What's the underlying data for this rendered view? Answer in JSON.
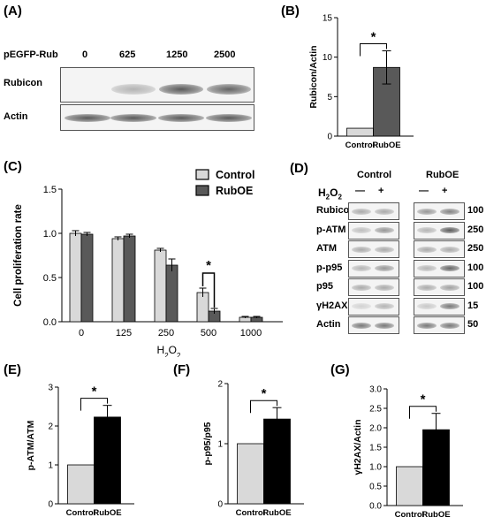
{
  "panel_labels": {
    "A": "(A)",
    "B": "(B)",
    "C": "(C)",
    "D": "(D)",
    "E": "(E)",
    "F": "(F)",
    "G": "(G)"
  },
  "panel_a": {
    "row_label_top": "pEGFP-Rub",
    "doses": [
      "0",
      "625",
      "1250",
      "2500"
    ],
    "blot_labels": [
      "Rubicon",
      "Actin"
    ],
    "rubicon_intensity": [
      0.0,
      0.3,
      0.75,
      0.7
    ],
    "actin_intensity": [
      0.75,
      0.75,
      0.75,
      0.75
    ]
  },
  "panel_d": {
    "group_labels": [
      "Control",
      "RubOE"
    ],
    "treatment_label": "H2O2",
    "treatment_marks": [
      "—",
      "+",
      "—",
      "+"
    ],
    "rows": [
      {
        "label": "Rubicon",
        "kda": "100"
      },
      {
        "label": "p-ATM",
        "kda": "250"
      },
      {
        "label": "ATM",
        "kda": "250"
      },
      {
        "label": "p-p95",
        "kda": "100"
      },
      {
        "label": "p95",
        "kda": "100"
      },
      {
        "label": "γH2AX",
        "kda": "15"
      },
      {
        "label": "Actin",
        "kda": "50"
      }
    ]
  },
  "chart_data": [
    {
      "id": "B",
      "type": "bar",
      "categories": [
        "Control",
        "RubOE"
      ],
      "values": [
        1.0,
        8.7
      ],
      "errors": [
        0,
        2.1
      ],
      "colors": [
        "#d9d9d9",
        "#595959"
      ],
      "ylabel": "Rubicon/Actin",
      "ylim": [
        0,
        15
      ],
      "yticks": [
        0,
        5,
        10,
        15
      ],
      "significance": "*"
    },
    {
      "id": "C",
      "type": "bar",
      "categories": [
        "0",
        "125",
        "250",
        "500",
        "1000"
      ],
      "xlabel": "H2O2",
      "ylabel": "Cell proliferation rate",
      "ylim": [
        0,
        1.5
      ],
      "yticks": [
        0.0,
        0.5,
        1.0,
        1.5
      ],
      "series": [
        {
          "name": "Control",
          "color": "#d9d9d9",
          "values": [
            1.0,
            0.94,
            0.81,
            0.33,
            0.05
          ],
          "errors": [
            0.03,
            0.02,
            0.02,
            0.05,
            0.01
          ]
        },
        {
          "name": "RubOE",
          "color": "#595959",
          "values": [
            0.99,
            0.97,
            0.64,
            0.12,
            0.05
          ],
          "errors": [
            0.02,
            0.02,
            0.07,
            0.03,
            0.01
          ]
        }
      ],
      "legend": "top-right",
      "significance": {
        "category": "500",
        "label": "*"
      }
    },
    {
      "id": "E",
      "type": "bar",
      "categories": [
        "Control",
        "RubOE"
      ],
      "values": [
        1.0,
        2.23
      ],
      "errors": [
        0,
        0.3
      ],
      "colors": [
        "#d9d9d9",
        "#000000"
      ],
      "ylabel": "p-ATM/ATM",
      "ylim": [
        0,
        3
      ],
      "yticks": [
        0,
        1,
        2,
        3
      ],
      "significance": "*"
    },
    {
      "id": "F",
      "type": "bar",
      "categories": [
        "Control",
        "RubOE"
      ],
      "values": [
        1.0,
        1.41
      ],
      "errors": [
        0,
        0.19
      ],
      "colors": [
        "#d9d9d9",
        "#000000"
      ],
      "ylabel": "p-p95/p95",
      "ylim": [
        0,
        2
      ],
      "yticks": [
        0,
        1,
        2
      ],
      "significance": "*"
    },
    {
      "id": "G",
      "type": "bar",
      "categories": [
        "Control",
        "RubOE"
      ],
      "values": [
        1.0,
        1.95
      ],
      "errors": [
        0,
        0.42
      ],
      "colors": [
        "#d9d9d9",
        "#000000"
      ],
      "ylabel": "γH2AX/Actin",
      "ylim": [
        0,
        3.0
      ],
      "yticks": [
        0.0,
        0.5,
        1.0,
        1.5,
        2.0,
        2.5,
        3.0
      ],
      "significance": "*"
    }
  ]
}
